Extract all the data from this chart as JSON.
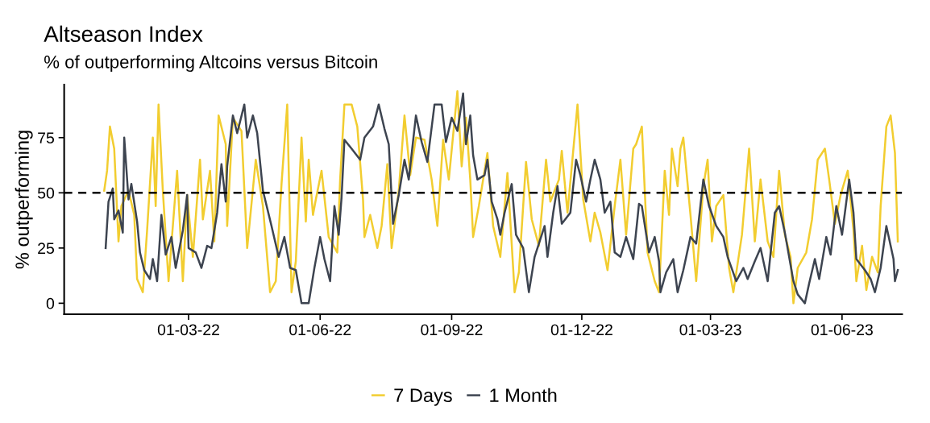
{
  "chart_data": {
    "type": "line",
    "title": "Altseason Index",
    "subtitle": "% of outperforming Altcoins versus Bitcoin",
    "ylabel": "% outperforming",
    "series": [
      {
        "name": "7 Days",
        "color": "#f2cd30",
        "x": [
          "2022-01-01",
          "2022-01-03",
          "2022-01-05",
          "2022-01-08",
          "2022-01-11",
          "2022-01-13",
          "2022-01-18",
          "2022-01-22",
          "2022-01-24",
          "2022-01-28",
          "2022-01-31",
          "2022-02-04",
          "2022-02-06",
          "2022-02-08",
          "2022-02-11",
          "2022-02-15",
          "2022-02-21",
          "2022-02-25",
          "2022-02-28",
          "2022-03-04",
          "2022-03-09",
          "2022-03-11",
          "2022-03-16",
          "2022-03-19",
          "2022-03-22",
          "2022-03-27",
          "2022-03-28",
          "2022-04-01",
          "2022-04-07",
          "2022-04-11",
          "2022-04-17",
          "2022-04-22",
          "2022-04-27",
          "2022-05-01",
          "2022-05-05",
          "2022-05-09",
          "2022-05-12",
          "2022-05-15",
          "2022-05-19",
          "2022-05-22",
          "2022-05-24",
          "2022-05-27",
          "2022-05-29",
          "2022-06-02",
          "2022-06-07",
          "2022-06-13",
          "2022-06-15",
          "2022-06-18",
          "2022-06-23",
          "2022-06-27",
          "2022-07-01",
          "2022-07-02",
          "2022-07-06",
          "2022-07-11",
          "2022-07-14",
          "2022-07-18",
          "2022-07-21",
          "2022-07-26",
          "2022-07-30",
          "2022-08-03",
          "2022-08-07",
          "2022-08-13",
          "2022-08-18",
          "2022-08-22",
          "2022-08-26",
          "2022-08-30",
          "2022-09-05",
          "2022-09-08",
          "2022-09-11",
          "2022-09-14",
          "2022-09-16",
          "2022-09-20",
          "2022-09-26",
          "2022-09-30",
          "2022-10-05",
          "2022-10-10",
          "2022-10-15",
          "2022-10-18",
          "2022-10-23",
          "2022-10-27",
          "2022-11-01",
          "2022-11-06",
          "2022-11-09",
          "2022-11-15",
          "2022-11-17",
          "2022-11-21",
          "2022-11-28",
          "2022-12-02",
          "2022-12-07",
          "2022-12-10",
          "2022-12-14",
          "2022-12-19",
          "2022-12-24",
          "2022-12-28",
          "2023-01-01",
          "2023-01-06",
          "2023-01-08",
          "2023-01-12",
          "2023-01-16",
          "2023-01-21",
          "2023-01-24",
          "2023-01-28",
          "2023-01-31",
          "2023-02-02",
          "2023-02-06",
          "2023-02-08",
          "2023-02-10",
          "2023-02-15",
          "2023-02-19",
          "2023-02-24",
          "2023-02-27",
          "2023-03-02",
          "2023-03-05",
          "2023-03-10",
          "2023-03-14",
          "2023-03-17",
          "2023-03-23",
          "2023-03-28",
          "2023-04-01",
          "2023-04-05",
          "2023-04-10",
          "2023-04-14",
          "2023-04-18",
          "2023-04-22",
          "2023-04-26",
          "2023-04-28",
          "2023-05-01",
          "2023-05-07",
          "2023-05-11",
          "2023-05-15",
          "2023-05-20",
          "2023-05-23",
          "2023-05-27",
          "2023-05-31",
          "2023-06-05",
          "2023-06-09",
          "2023-06-11",
          "2023-06-15",
          "2023-06-18",
          "2023-06-22",
          "2023-06-26",
          "2023-06-28",
          "2023-07-02",
          "2023-07-05",
          "2023-07-08",
          "2023-07-10"
        ],
        "values": [
          51,
          60,
          80,
          70,
          28,
          44,
          51,
          40,
          11,
          5,
          33,
          75,
          44,
          90,
          51,
          10,
          60,
          10,
          49,
          21,
          65,
          38,
          60,
          28,
          85,
          72,
          35,
          84,
          78,
          25,
          65,
          44,
          5,
          10,
          54,
          90,
          5,
          19,
          75,
          37,
          65,
          40,
          47,
          60,
          30,
          23,
          56,
          90,
          90,
          80,
          47,
          30,
          40,
          25,
          35,
          63,
          25,
          51,
          85,
          58,
          75,
          74,
          56,
          35,
          74,
          56,
          96,
          62,
          84,
          56,
          30,
          44,
          68,
          35,
          21,
          59,
          5,
          14,
          64,
          38,
          26,
          65,
          46,
          56,
          69,
          41,
          90,
          47,
          28,
          41,
          32,
          15,
          44,
          65,
          31,
          70,
          72,
          80,
          23,
          10,
          5,
          60,
          40,
          70,
          53,
          70,
          75,
          40,
          10,
          53,
          65,
          28,
          44,
          49,
          16,
          5,
          31,
          70,
          28,
          56,
          28,
          21,
          60,
          31,
          21,
          0,
          16,
          23,
          38,
          65,
          70,
          56,
          36,
          49,
          60,
          33,
          10,
          26,
          6,
          21,
          14,
          44,
          80,
          85,
          68,
          28
        ]
      },
      {
        "name": "1 Month",
        "color": "#3d4450",
        "x": [
          "2022-01-02",
          "2022-01-04",
          "2022-01-07",
          "2022-01-08",
          "2022-01-11",
          "2022-01-14",
          "2022-01-15",
          "2022-01-18",
          "2022-01-20",
          "2022-01-24",
          "2022-01-26",
          "2022-01-29",
          "2022-02-02",
          "2022-02-04",
          "2022-02-07",
          "2022-02-10",
          "2022-02-13",
          "2022-02-17",
          "2022-02-20",
          "2022-02-25",
          "2022-02-28",
          "2022-03-01",
          "2022-03-06",
          "2022-03-10",
          "2022-03-14",
          "2022-03-17",
          "2022-03-21",
          "2022-03-24",
          "2022-03-27",
          "2022-03-28",
          "2022-04-01",
          "2022-04-04",
          "2022-04-09",
          "2022-04-11",
          "2022-04-15",
          "2022-04-18",
          "2022-04-22",
          "2022-04-28",
          "2022-05-03",
          "2022-05-07",
          "2022-05-11",
          "2022-05-15",
          "2022-05-19",
          "2022-05-24",
          "2022-05-28",
          "2022-06-01",
          "2022-06-04",
          "2022-06-08",
          "2022-06-11",
          "2022-06-14",
          "2022-06-16",
          "2022-06-18",
          "2022-06-23",
          "2022-06-29",
          "2022-07-02",
          "2022-07-08",
          "2022-07-12",
          "2022-07-16",
          "2022-07-19",
          "2022-07-22",
          "2022-07-26",
          "2022-07-30",
          "2022-08-02",
          "2022-08-07",
          "2022-08-11",
          "2022-08-15",
          "2022-08-20",
          "2022-08-25",
          "2022-08-28",
          "2022-09-01",
          "2022-09-05",
          "2022-09-09",
          "2022-09-11",
          "2022-09-14",
          "2022-09-16",
          "2022-09-19",
          "2022-09-24",
          "2022-09-26",
          "2022-09-29",
          "2022-10-03",
          "2022-10-05",
          "2022-10-08",
          "2022-10-13",
          "2022-10-16",
          "2022-10-21",
          "2022-10-25",
          "2022-10-29",
          "2022-11-05",
          "2022-11-07",
          "2022-11-11",
          "2022-11-14",
          "2022-11-17",
          "2022-11-23",
          "2022-11-27",
          "2022-11-30",
          "2022-12-04",
          "2022-12-07",
          "2022-12-10",
          "2022-12-14",
          "2022-12-17",
          "2022-12-21",
          "2022-12-24",
          "2022-12-28",
          "2023-01-01",
          "2023-01-06",
          "2023-01-10",
          "2023-01-12",
          "2023-01-17",
          "2023-01-21",
          "2023-01-24",
          "2023-01-25",
          "2023-01-29",
          "2023-02-03",
          "2023-02-06",
          "2023-02-10",
          "2023-02-15",
          "2023-02-19",
          "2023-02-24",
          "2023-02-28",
          "2023-03-05",
          "2023-03-10",
          "2023-03-13",
          "2023-03-19",
          "2023-03-24",
          "2023-03-27",
          "2023-04-01",
          "2023-04-05",
          "2023-04-10",
          "2023-04-15",
          "2023-04-18",
          "2023-04-22",
          "2023-04-28",
          "2023-05-01",
          "2023-05-06",
          "2023-05-09",
          "2023-05-13",
          "2023-05-16",
          "2023-05-21",
          "2023-05-24",
          "2023-05-28",
          "2023-06-01",
          "2023-06-06",
          "2023-06-09",
          "2023-06-11",
          "2023-06-17",
          "2023-06-21",
          "2023-06-24",
          "2023-06-28",
          "2023-07-02",
          "2023-07-07",
          "2023-07-08",
          "2023-07-10"
        ],
        "values": [
          25,
          46,
          52,
          38,
          42,
          32,
          75,
          47,
          54,
          37,
          23,
          15,
          11,
          20,
          10,
          40,
          22,
          30,
          16,
          33,
          49,
          25,
          23,
          16,
          26,
          25,
          41,
          63,
          46,
          62,
          85,
          77,
          90,
          75,
          85,
          77,
          51,
          35,
          21,
          30,
          16,
          15,
          0,
          0,
          16,
          30,
          20,
          10,
          44,
          31,
          48,
          74,
          70,
          65,
          75,
          80,
          90,
          79,
          72,
          36,
          49,
          65,
          56,
          85,
          73,
          64,
          90,
          90,
          73,
          84,
          78,
          95,
          72,
          85,
          67,
          56,
          58,
          65,
          46,
          38,
          31,
          41,
          54,
          31,
          25,
          5,
          21,
          35,
          21,
          41,
          53,
          36,
          41,
          65,
          58,
          46,
          56,
          65,
          56,
          41,
          46,
          23,
          21,
          30,
          20,
          45,
          44,
          23,
          30,
          19,
          5,
          14,
          20,
          5,
          15,
          30,
          27,
          56,
          44,
          35,
          30,
          21,
          10,
          16,
          11,
          19,
          25,
          10,
          41,
          44,
          32,
          10,
          4,
          0,
          9,
          20,
          11,
          30,
          22,
          44,
          31,
          56,
          41,
          20,
          15,
          11,
          5,
          16,
          35,
          20,
          10,
          15
        ]
      }
    ],
    "xlim": [
      "2021-12-04",
      "2023-07-13"
    ],
    "xticks": [
      {
        "value": "2022-03-01",
        "label": "01-03-22"
      },
      {
        "value": "2022-06-01",
        "label": "01-06-22"
      },
      {
        "value": "2022-09-01",
        "label": "01-09-22"
      },
      {
        "value": "2022-12-01",
        "label": "01-12-22"
      },
      {
        "value": "2023-03-01",
        "label": "01-03-23"
      },
      {
        "value": "2023-06-01",
        "label": "01-06-23"
      }
    ],
    "ylim": [
      -5,
      99
    ],
    "yticks": [
      0,
      25,
      50,
      75
    ],
    "ref_lines": [
      {
        "axis": "y",
        "value": 50,
        "color": "#000000",
        "line_style": "dashed"
      }
    ],
    "grid": false,
    "legend": "bottom",
    "line_style": "solid",
    "marker": "none"
  }
}
